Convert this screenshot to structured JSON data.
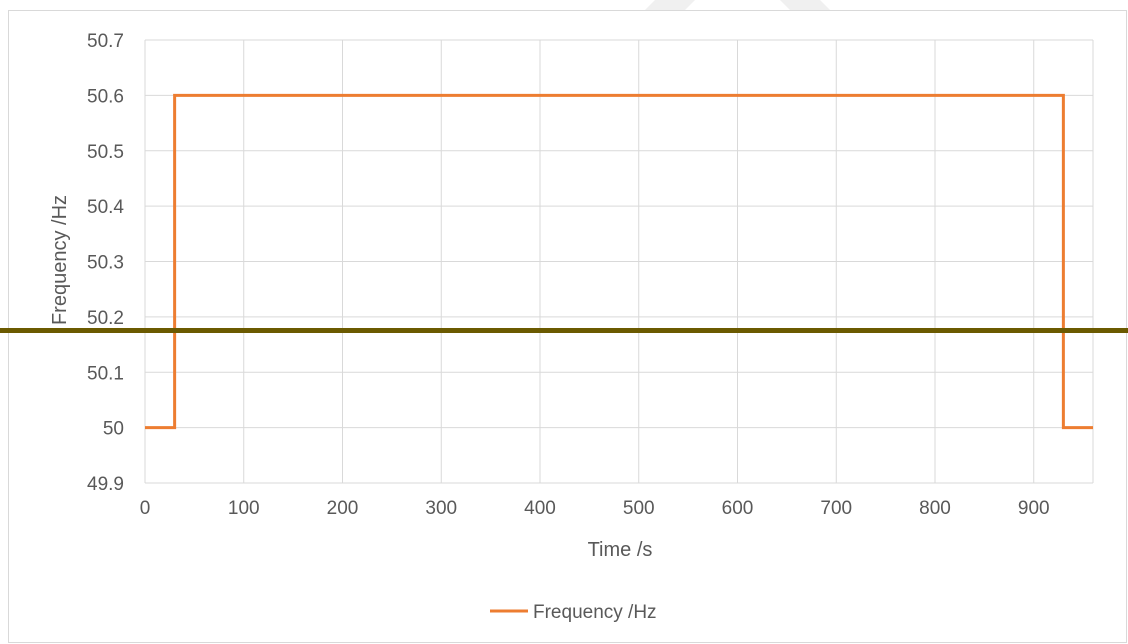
{
  "page": {
    "heading": ""
  },
  "chart_data": {
    "type": "line",
    "title": "",
    "xlabel": "Time /s",
    "ylabel": "Frequency /Hz",
    "xlim": [
      0,
      960
    ],
    "ylim": [
      49.9,
      50.7
    ],
    "x_ticks": [
      0,
      100,
      200,
      300,
      400,
      500,
      600,
      700,
      800,
      900
    ],
    "y_ticks": [
      49.9,
      50,
      50.1,
      50.2,
      50.3,
      50.4,
      50.5,
      50.6,
      50.7
    ],
    "y_tick_labels": [
      "49.9",
      "50",
      "50.1",
      "50.2",
      "50.3",
      "50.4",
      "50.5",
      "50.6",
      "50.7"
    ],
    "grid": true,
    "legend_position": "bottom",
    "series": [
      {
        "name": "Frequency /Hz",
        "color": "#ed7d31",
        "x": [
          0,
          30,
          30,
          930,
          930,
          960
        ],
        "y": [
          50,
          50,
          50.6,
          50.6,
          50,
          50
        ]
      }
    ],
    "colors": {
      "grid": "#d9d9d9",
      "axis_text": "#595959",
      "series": "#ed7d31",
      "rule": "#6b5a00"
    }
  }
}
